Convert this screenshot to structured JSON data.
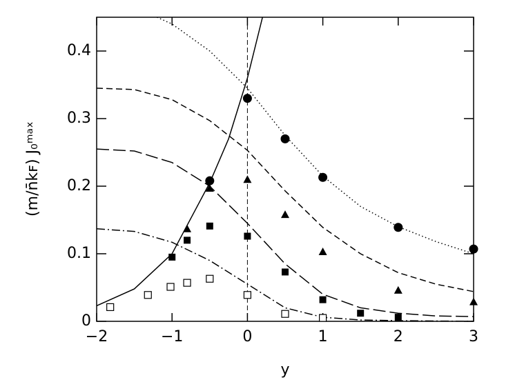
{
  "chart_data": {
    "type": "scatter",
    "xlabel": "y",
    "ylabel": "(m/n̄kꜰ)  J₀ᵐᵃˣ",
    "xlim": [
      -2,
      3
    ],
    "ylim": [
      0,
      0.45
    ],
    "xticks": [
      {
        "value": -2,
        "label": "−2"
      },
      {
        "value": -1,
        "label": "−1"
      },
      0,
      1,
      2,
      3
    ],
    "yticks": [
      0,
      0.1,
      0.2,
      0.3,
      0.4
    ],
    "vline": 0,
    "series": [
      {
        "marker": "circle",
        "color": "#000",
        "x": [
          -0.5,
          0,
          0.5,
          1,
          2,
          3
        ],
        "values": [
          0.208,
          0.33,
          0.27,
          0.213,
          0.139,
          0.107
        ]
      },
      {
        "marker": "triangle",
        "color": "#000",
        "x": [
          -0.8,
          -0.5,
          0,
          0.5,
          1,
          2,
          3
        ],
        "values": [
          0.137,
          0.197,
          0.21,
          0.158,
          0.103,
          0.046,
          0.029
        ]
      },
      {
        "marker": "square",
        "color": "#000",
        "x": [
          -1,
          -0.8,
          -0.5,
          0,
          0.5,
          1,
          1.5,
          2
        ],
        "values": [
          0.095,
          0.12,
          0.141,
          0.126,
          0.073,
          0.032,
          0.012,
          0.006
        ]
      },
      {
        "marker": "open-square",
        "color": "#000",
        "x": [
          -1.82,
          -1.32,
          -1.02,
          -0.8,
          -0.5,
          0,
          0.5,
          1
        ],
        "values": [
          0.021,
          0.039,
          0.051,
          0.057,
          0.063,
          0.039,
          0.011,
          0.005
        ]
      }
    ],
    "lines": [
      {
        "style": "solid",
        "color": "#000",
        "x": [
          -2,
          -1.5,
          -1,
          -0.5,
          -0.25,
          0,
          0.2
        ],
        "values": [
          0.023,
          0.048,
          0.1,
          0.205,
          0.27,
          0.36,
          0.45
        ]
      },
      {
        "style": "dotted",
        "color": "#000",
        "x": [
          -1.2,
          -1,
          -0.5,
          0,
          0.5,
          1,
          1.5,
          2,
          2.5,
          3
        ],
        "values": [
          0.45,
          0.44,
          0.4,
          0.345,
          0.275,
          0.215,
          0.17,
          0.14,
          0.118,
          0.1
        ]
      },
      {
        "style": "dashed",
        "color": "#000",
        "x": [
          -2,
          -1.5,
          -1,
          -0.5,
          0,
          0.5,
          1,
          1.5,
          2,
          2.5,
          3
        ],
        "values": [
          0.345,
          0.343,
          0.328,
          0.297,
          0.253,
          0.193,
          0.139,
          0.1,
          0.072,
          0.055,
          0.044
        ]
      },
      {
        "style": "long-dashed",
        "color": "#000",
        "x": [
          -2,
          -1.5,
          -1,
          -0.5,
          0,
          0.5,
          1,
          1.5,
          2,
          2.5,
          3
        ],
        "values": [
          0.255,
          0.252,
          0.235,
          0.2,
          0.145,
          0.085,
          0.04,
          0.02,
          0.012,
          0.008,
          0.007
        ]
      },
      {
        "style": "dash-dot",
        "color": "#000",
        "x": [
          -2,
          -1.5,
          -1,
          -0.5,
          0,
          0.5,
          1,
          1.5,
          2,
          3
        ],
        "values": [
          0.137,
          0.133,
          0.117,
          0.09,
          0.055,
          0.02,
          0.006,
          0.002,
          0.001,
          0
        ]
      }
    ]
  }
}
